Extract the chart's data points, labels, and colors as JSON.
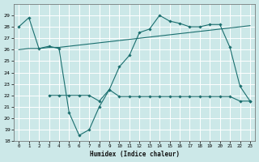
{
  "xlabel": "Humidex (Indice chaleur)",
  "bg_color": "#cce8e8",
  "grid_color": "#ffffff",
  "line_color": "#1a6e6e",
  "ylim": [
    18,
    30
  ],
  "xlim": [
    -0.5,
    23.5
  ],
  "yticks": [
    18,
    19,
    20,
    21,
    22,
    23,
    24,
    25,
    26,
    27,
    28,
    29
  ],
  "xticks": [
    0,
    1,
    2,
    3,
    4,
    5,
    6,
    7,
    8,
    9,
    10,
    11,
    12,
    13,
    14,
    15,
    16,
    17,
    18,
    19,
    20,
    21,
    22,
    23
  ],
  "line1_x": [
    0,
    1,
    2,
    3,
    4,
    5,
    6,
    7,
    8,
    9,
    10,
    11,
    12,
    13,
    14,
    15,
    16,
    17,
    18,
    19,
    20,
    21,
    22,
    23
  ],
  "line1_y": [
    26.0,
    26.1,
    26.1,
    26.2,
    26.2,
    26.3,
    26.4,
    26.5,
    26.6,
    26.7,
    26.8,
    26.9,
    27.0,
    27.1,
    27.2,
    27.3,
    27.4,
    27.5,
    27.6,
    27.7,
    27.8,
    27.9,
    28.0,
    28.1
  ],
  "line2_x": [
    0,
    1,
    2,
    3,
    4,
    5,
    6,
    7,
    8,
    9,
    10,
    11,
    12,
    13,
    14,
    15,
    16,
    17,
    18,
    19,
    20,
    21,
    22,
    23
  ],
  "line2_y": [
    28.0,
    28.8,
    26.1,
    26.3,
    26.1,
    20.5,
    18.5,
    19.0,
    21.0,
    22.5,
    24.5,
    25.5,
    27.5,
    27.8,
    29.0,
    28.5,
    28.3,
    28.0,
    28.0,
    28.2,
    28.2,
    26.2,
    22.8,
    21.5
  ],
  "line3_x": [
    3,
    4,
    5,
    6,
    7,
    8,
    9,
    10,
    11,
    12,
    13,
    14,
    15,
    16,
    17,
    18,
    19,
    20,
    21,
    22,
    23
  ],
  "line3_y": [
    22.0,
    22.0,
    22.0,
    22.0,
    22.0,
    21.5,
    22.5,
    21.9,
    21.9,
    21.9,
    21.9,
    21.9,
    21.9,
    21.9,
    21.9,
    21.9,
    21.9,
    21.9,
    21.9,
    21.5,
    21.5
  ]
}
